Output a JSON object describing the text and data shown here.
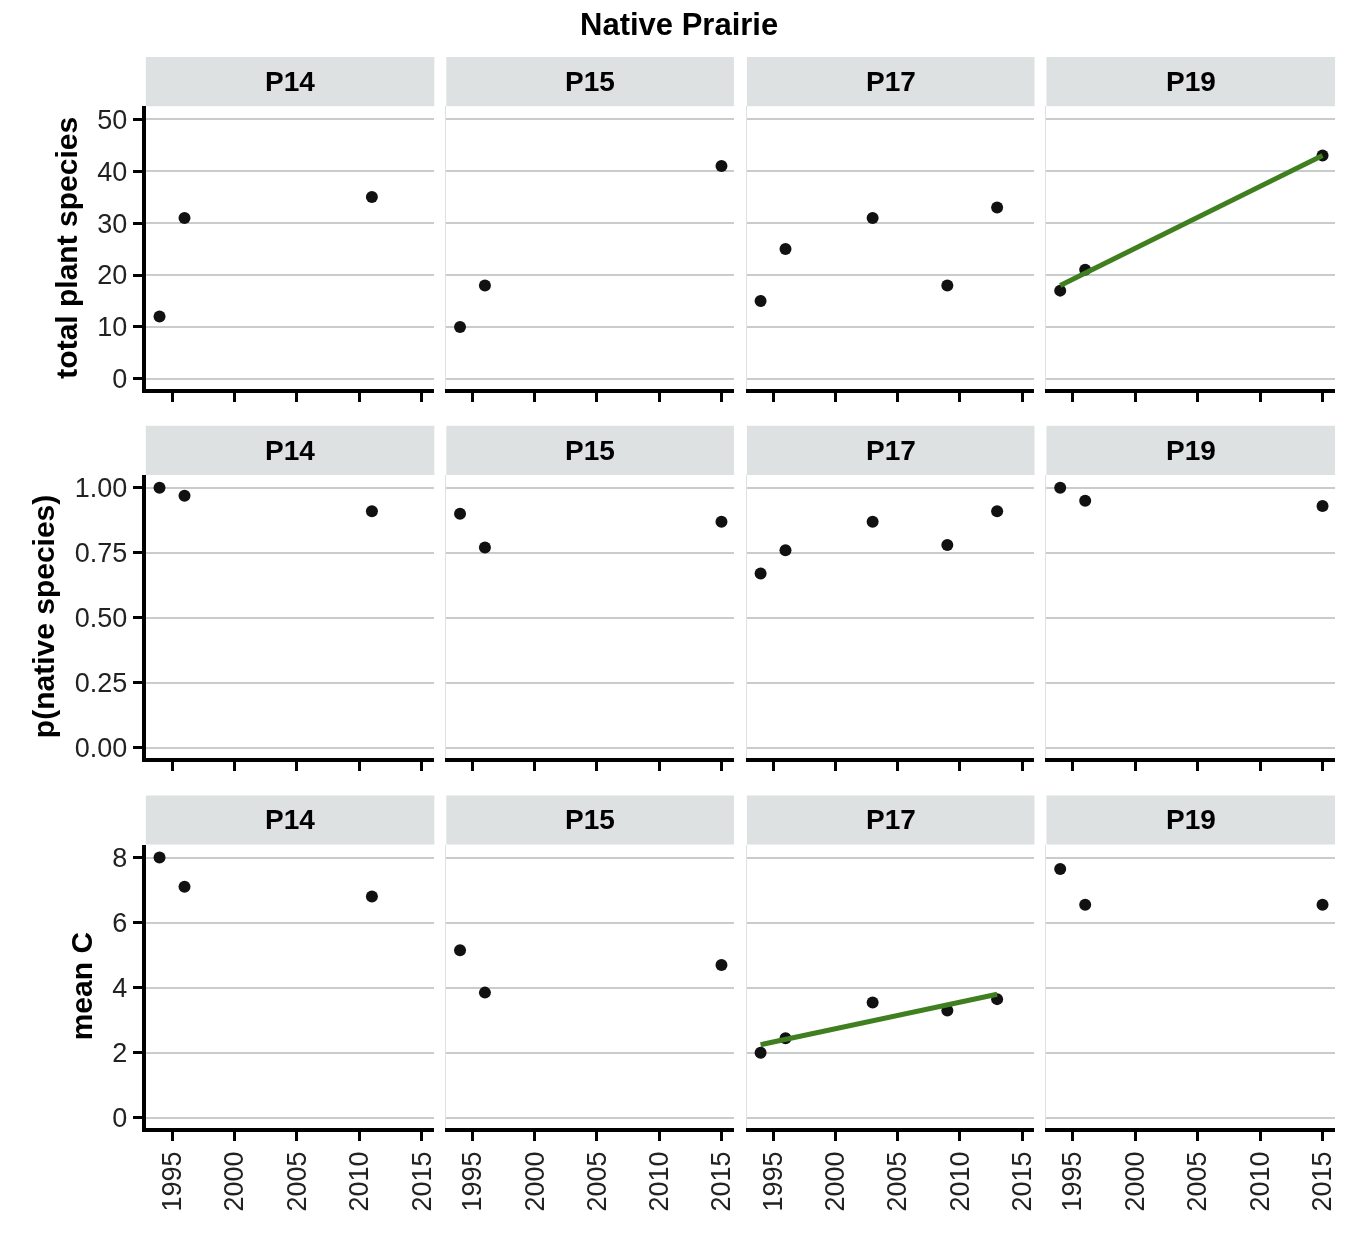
{
  "chart_data": [
    {
      "type": "scatter",
      "title": "P14",
      "annotations": [
        "Native Prairie"
      ],
      "ylabel": "total plant species",
      "xlim": [
        1992.9,
        2016
      ],
      "xticks": [
        1995,
        2000,
        2005,
        2010,
        2015
      ],
      "ylim": [
        -2,
        52.5
      ],
      "yticks": [
        0,
        10,
        20,
        30,
        40,
        50
      ],
      "grid": "y",
      "marker": "circle",
      "tick_labels": "y",
      "series": [
        {
          "color": "#111111",
          "x": [
            1994,
            1996,
            2011
          ],
          "values": [
            12,
            31,
            35
          ]
        }
      ]
    },
    {
      "type": "scatter",
      "title": "P15",
      "xlim": [
        1992.9,
        2016
      ],
      "xticks": [
        1995,
        2000,
        2005,
        2010,
        2015
      ],
      "ylim": [
        -2,
        52.5
      ],
      "yticks": [
        0,
        10,
        20,
        30,
        40,
        50
      ],
      "grid": "y",
      "marker": "circle",
      "tick_labels": false,
      "series": [
        {
          "color": "#111111",
          "x": [
            1994,
            1996,
            2015
          ],
          "values": [
            10,
            18,
            41
          ]
        }
      ]
    },
    {
      "type": "scatter",
      "title": "P17",
      "xlim": [
        1992.9,
        2016
      ],
      "xticks": [
        1995,
        2000,
        2005,
        2010,
        2015
      ],
      "ylim": [
        -2,
        52.5
      ],
      "yticks": [
        0,
        10,
        20,
        30,
        40,
        50
      ],
      "grid": "y",
      "marker": "circle",
      "tick_labels": false,
      "series": [
        {
          "color": "#111111",
          "x": [
            1994,
            1996,
            2003,
            2009,
            2013
          ],
          "values": [
            15,
            25,
            31,
            18,
            33
          ]
        }
      ]
    },
    {
      "type": "scatter",
      "title": "P19",
      "xlim": [
        1992.9,
        2016
      ],
      "xticks": [
        1995,
        2000,
        2005,
        2010,
        2015
      ],
      "ylim": [
        -2,
        52.5
      ],
      "yticks": [
        0,
        10,
        20,
        30,
        40,
        50
      ],
      "grid": "y",
      "marker": "circle",
      "tick_labels": false,
      "series": [
        {
          "color": "#111111",
          "x": [
            1994,
            1996,
            2015
          ],
          "values": [
            17,
            21,
            43
          ]
        },
        {
          "type": "line",
          "marker": "none",
          "color": "#3f7f1f",
          "x": [
            1994,
            2015
          ],
          "values": [
            18,
            43
          ]
        }
      ]
    },
    {
      "type": "scatter",
      "title": "P14",
      "ylabel": "p(native species)",
      "xlim": [
        1992.9,
        2016
      ],
      "xticks": [
        1995,
        2000,
        2005,
        2010,
        2015
      ],
      "ylim": [
        -0.04,
        1.05
      ],
      "yticks": [
        {
          "value": 0,
          "label": "0.00"
        },
        {
          "value": 0.25,
          "label": "0.25"
        },
        {
          "value": 0.5,
          "label": "0.50"
        },
        {
          "value": 0.75,
          "label": "0.75"
        },
        {
          "value": 1,
          "label": "1.00"
        }
      ],
      "grid": "y",
      "marker": "circle",
      "tick_labels": "y",
      "series": [
        {
          "color": "#111111",
          "x": [
            1994,
            1996,
            2011
          ],
          "values": [
            1.0,
            0.97,
            0.91
          ]
        }
      ]
    },
    {
      "type": "scatter",
      "title": "P15",
      "xlim": [
        1992.9,
        2016
      ],
      "xticks": [
        1995,
        2000,
        2005,
        2010,
        2015
      ],
      "ylim": [
        -0.04,
        1.05
      ],
      "yticks": [
        0,
        0.25,
        0.5,
        0.75,
        1
      ],
      "grid": "y",
      "marker": "circle",
      "tick_labels": false,
      "series": [
        {
          "color": "#111111",
          "x": [
            1994,
            1996,
            2015
          ],
          "values": [
            0.9,
            0.77,
            0.87
          ]
        }
      ]
    },
    {
      "type": "scatter",
      "title": "P17",
      "xlim": [
        1992.9,
        2016
      ],
      "xticks": [
        1995,
        2000,
        2005,
        2010,
        2015
      ],
      "ylim": [
        -0.04,
        1.05
      ],
      "yticks": [
        0,
        0.25,
        0.5,
        0.75,
        1
      ],
      "grid": "y",
      "marker": "circle",
      "tick_labels": false,
      "series": [
        {
          "color": "#111111",
          "x": [
            1994,
            1996,
            2003,
            2009,
            2013
          ],
          "values": [
            0.67,
            0.76,
            0.87,
            0.78,
            0.91
          ]
        }
      ]
    },
    {
      "type": "scatter",
      "title": "P19",
      "xlim": [
        1992.9,
        2016
      ],
      "xticks": [
        1995,
        2000,
        2005,
        2010,
        2015
      ],
      "ylim": [
        -0.04,
        1.05
      ],
      "yticks": [
        0,
        0.25,
        0.5,
        0.75,
        1
      ],
      "grid": "y",
      "marker": "circle",
      "tick_labels": false,
      "series": [
        {
          "color": "#111111",
          "x": [
            1994,
            1996,
            2015
          ],
          "values": [
            1.0,
            0.95,
            0.93
          ]
        }
      ]
    },
    {
      "type": "scatter",
      "title": "P14",
      "ylabel": "mean C",
      "xlim": [
        1992.9,
        2016
      ],
      "xticks": [
        1995,
        2000,
        2005,
        2010,
        2015
      ],
      "ylim": [
        -0.3,
        8.4
      ],
      "yticks": [
        0,
        2,
        4,
        6,
        8
      ],
      "grid": "y",
      "marker": "circle",
      "series": [
        {
          "color": "#111111",
          "x": [
            1994,
            1996,
            2011
          ],
          "values": [
            8.0,
            7.1,
            6.8
          ]
        }
      ]
    },
    {
      "type": "scatter",
      "title": "P15",
      "xlim": [
        1992.9,
        2016
      ],
      "xticks": [
        1995,
        2000,
        2005,
        2010,
        2015
      ],
      "ylim": [
        -0.3,
        8.4
      ],
      "yticks": [
        0,
        2,
        4,
        6,
        8
      ],
      "grid": "y",
      "marker": "circle",
      "tick_labels": "x",
      "series": [
        {
          "color": "#111111",
          "x": [
            1994,
            1996,
            2015
          ],
          "values": [
            5.15,
            3.85,
            4.7
          ]
        }
      ]
    },
    {
      "type": "scatter",
      "title": "P17",
      "xlim": [
        1992.9,
        2016
      ],
      "xticks": [
        1995,
        2000,
        2005,
        2010,
        2015
      ],
      "ylim": [
        -0.3,
        8.4
      ],
      "yticks": [
        0,
        2,
        4,
        6,
        8
      ],
      "grid": "y",
      "marker": "circle",
      "tick_labels": "x",
      "series": [
        {
          "color": "#111111",
          "x": [
            1994,
            1996,
            2003,
            2009,
            2013
          ],
          "values": [
            2.0,
            2.45,
            3.55,
            3.3,
            3.65
          ]
        },
        {
          "type": "line",
          "marker": "none",
          "color": "#3f7f1f",
          "x": [
            1994,
            2013
          ],
          "values": [
            2.25,
            3.8
          ]
        }
      ]
    },
    {
      "type": "scatter",
      "title": "P19",
      "xlim": [
        1992.9,
        2016
      ],
      "xticks": [
        1995,
        2000,
        2005,
        2010,
        2015
      ],
      "ylim": [
        -0.3,
        8.4
      ],
      "yticks": [
        0,
        2,
        4,
        6,
        8
      ],
      "grid": "y",
      "marker": "circle",
      "tick_labels": "x",
      "series": [
        {
          "color": "#111111",
          "x": [
            1994,
            1996,
            2015
          ],
          "values": [
            7.65,
            6.55,
            6.55
          ]
        }
      ]
    }
  ]
}
